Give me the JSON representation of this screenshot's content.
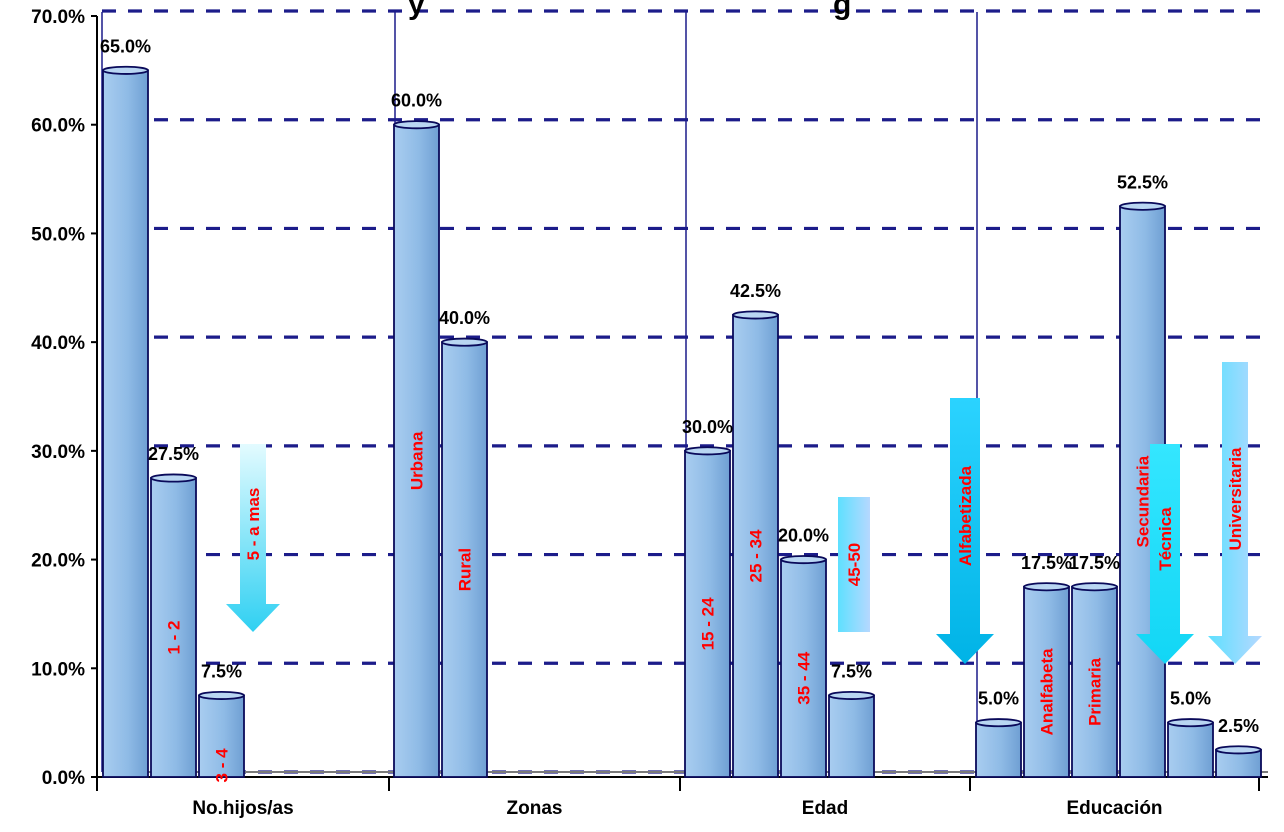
{
  "title_fragments": [
    "y",
    "g"
  ],
  "colors": {
    "bar_front": "#98c2ea",
    "bar_side": "#6f9fd3",
    "bar_top": "#b9d6f2",
    "bar_edge": "#0a0a5a",
    "grid": "#1c1c8a",
    "axis": "#000000",
    "bar_label": "#ff0000",
    "arrow_light": "#c8f4ff",
    "arrow_dark": "#22c7ea"
  },
  "chart_data": {
    "type": "bar",
    "title": "",
    "xlabel": "",
    "ylabel": "",
    "ylim": [
      0,
      70
    ],
    "yticks": [
      "0.0%",
      "10.0%",
      "20.0%",
      "30.0%",
      "40.0%",
      "50.0%",
      "60.0%",
      "70.0%"
    ],
    "grid": true,
    "categories": [
      "No.hijos/as",
      "Zonas",
      "Edad",
      "Educación"
    ],
    "groups": [
      {
        "category": "No.hijos/as",
        "bars": [
          {
            "label": "",
            "value": 65.0,
            "value_text": "65.0%"
          },
          {
            "label": "1 - 2",
            "value": 27.5,
            "value_text": "27.5%"
          },
          {
            "label": "3 - 4",
            "value": 7.5,
            "value_text": "7.5%"
          }
        ]
      },
      {
        "category": "Zonas",
        "bars": [
          {
            "label": "Urbana",
            "value": 60.0,
            "value_text": "60.0%"
          },
          {
            "label": "Rural",
            "value": 40.0,
            "value_text": "40.0%"
          }
        ]
      },
      {
        "category": "Edad",
        "bars": [
          {
            "label": "15 - 24",
            "value": 30.0,
            "value_text": "30.0%"
          },
          {
            "label": "25 - 34",
            "value": 42.5,
            "value_text": "42.5%"
          },
          {
            "label": "35 - 44",
            "value": 20.0,
            "value_text": "20.0%"
          },
          {
            "label": "",
            "value": 7.5,
            "value_text": "7.5%"
          }
        ]
      },
      {
        "category": "Educación",
        "bars": [
          {
            "label": "",
            "value": 5.0,
            "value_text": "5.0%"
          },
          {
            "label": "Analfabeta",
            "value": 17.5,
            "value_text": "17.5%"
          },
          {
            "label": "Primaria",
            "value": 17.5,
            "value_text": "17.5%"
          },
          {
            "label": "Secundaria",
            "value": 52.5,
            "value_text": "52.5%"
          },
          {
            "label": "",
            "value": 5.0,
            "value_text": "5.0%"
          },
          {
            "label": "",
            "value": 2.5,
            "value_text": "2.5%"
          }
        ]
      }
    ],
    "arrow_labels": [
      "5 - a mas",
      "45-50",
      "Alfabetizada",
      "Técnica",
      "Universitaria"
    ]
  }
}
